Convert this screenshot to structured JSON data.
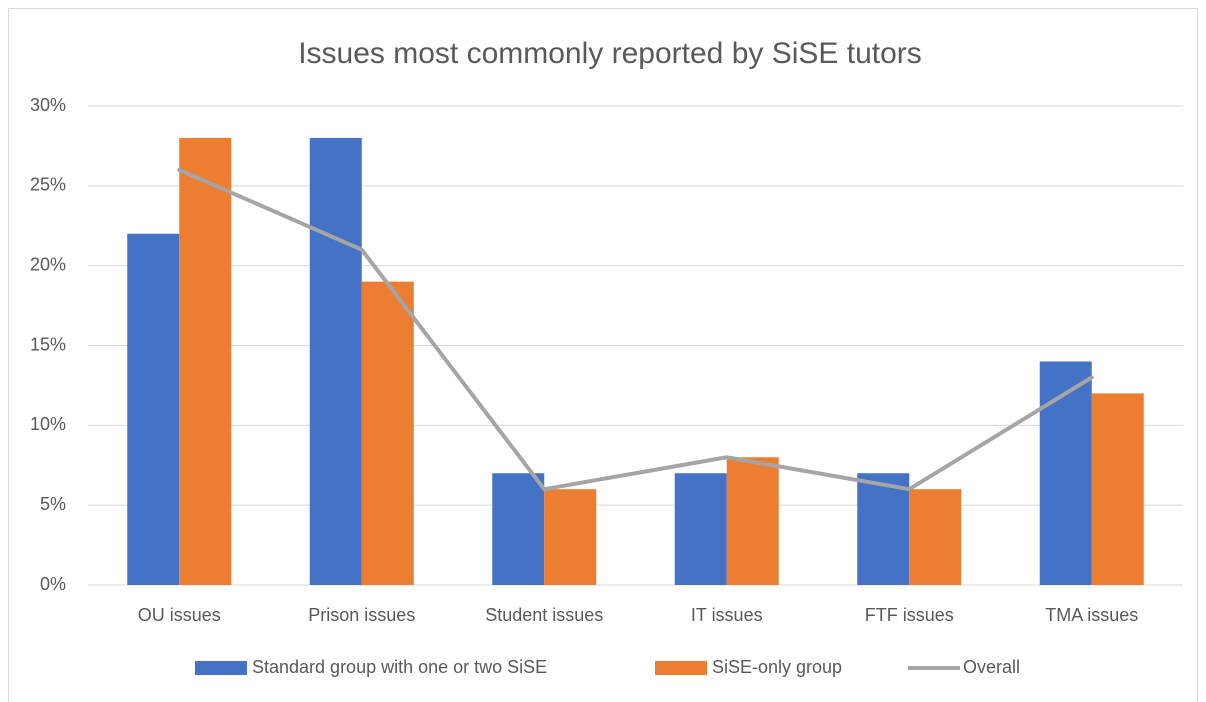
{
  "chart_data": {
    "type": "bar",
    "title": "Issues most commonly reported by SiSE tutors",
    "categories": [
      "OU issues",
      "Prison issues",
      "Student issues",
      "IT issues",
      "FTF issues",
      "TMA issues"
    ],
    "series": [
      {
        "name": "Standard group with one or two SiSE",
        "color": "#4472c4",
        "type": "bar",
        "values": [
          22,
          28,
          7,
          7,
          7,
          14
        ]
      },
      {
        "name": "SiSE-only group",
        "color": "#ed7d31",
        "type": "bar",
        "values": [
          28,
          19,
          6,
          8,
          6,
          12
        ]
      },
      {
        "name": "Overall",
        "color": "#a5a5a5",
        "type": "line",
        "values": [
          26,
          21,
          6,
          8,
          6,
          13
        ]
      }
    ],
    "ylim": [
      0,
      30
    ],
    "yticks": [
      {
        "value": 0,
        "label": "0%"
      },
      {
        "value": 5,
        "label": "5%"
      },
      {
        "value": 10,
        "label": "10%"
      },
      {
        "value": 15,
        "label": "15%"
      },
      {
        "value": 20,
        "label": "20%"
      },
      {
        "value": 25,
        "label": "25%"
      },
      {
        "value": 30,
        "label": "30%"
      }
    ],
    "grid": true,
    "legend": "bottom"
  }
}
